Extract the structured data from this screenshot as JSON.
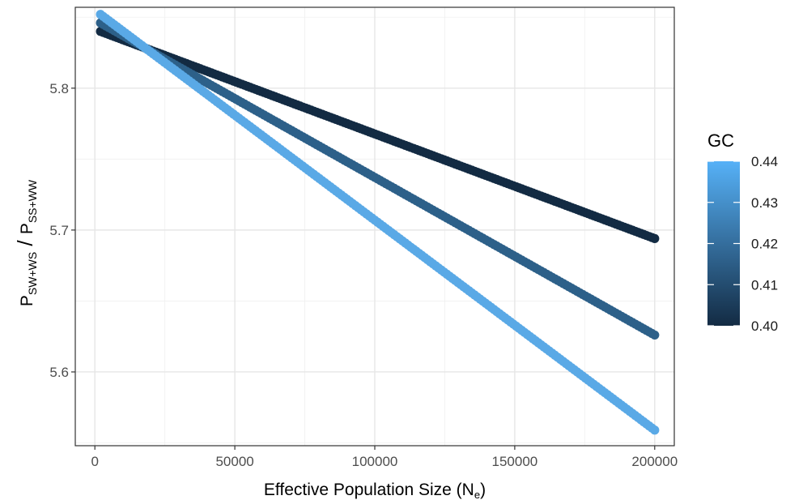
{
  "chart_data": {
    "type": "scatter",
    "xlabel_main": "Effective Population Size (N",
    "xlabel_sub": "e",
    "xlabel_close": ")",
    "ylabel_p1": "P",
    "ylabel_sub1": "SW+WS",
    "ylabel_slash": " / ",
    "ylabel_p2": "P",
    "ylabel_sub2": "SS+WW",
    "xlim": [
      -7000,
      207000
    ],
    "ylim": [
      5.548,
      5.857
    ],
    "x_ticks": [
      0,
      50000,
      100000,
      150000,
      200000
    ],
    "x_tick_labels": [
      "0",
      "50000",
      "100000",
      "150000",
      "200000"
    ],
    "y_ticks": [
      5.6,
      5.7,
      5.8
    ],
    "y_tick_labels": [
      "5.6",
      "5.7",
      "5.8"
    ],
    "grid": true,
    "legend": {
      "title": "GC",
      "placement": "right",
      "min": 0.4,
      "max": 0.44,
      "labels": [
        "0.44",
        "0.43",
        "0.42",
        "0.41",
        "0.40"
      ],
      "low_color": "#132B43",
      "high_color": "#56B1F7"
    },
    "series": [
      {
        "gc": 0.4,
        "color": "#132B43",
        "x": [
          2000,
          200000
        ],
        "y": [
          5.84,
          5.694
        ]
      },
      {
        "gc": 0.42,
        "color": "#2d6089",
        "x": [
          2000,
          200000
        ],
        "y": [
          5.846,
          5.626
        ]
      },
      {
        "gc": 0.44,
        "color": "#5aa9e6",
        "x": [
          2000,
          200000
        ],
        "y": [
          5.852,
          5.559
        ]
      }
    ]
  }
}
